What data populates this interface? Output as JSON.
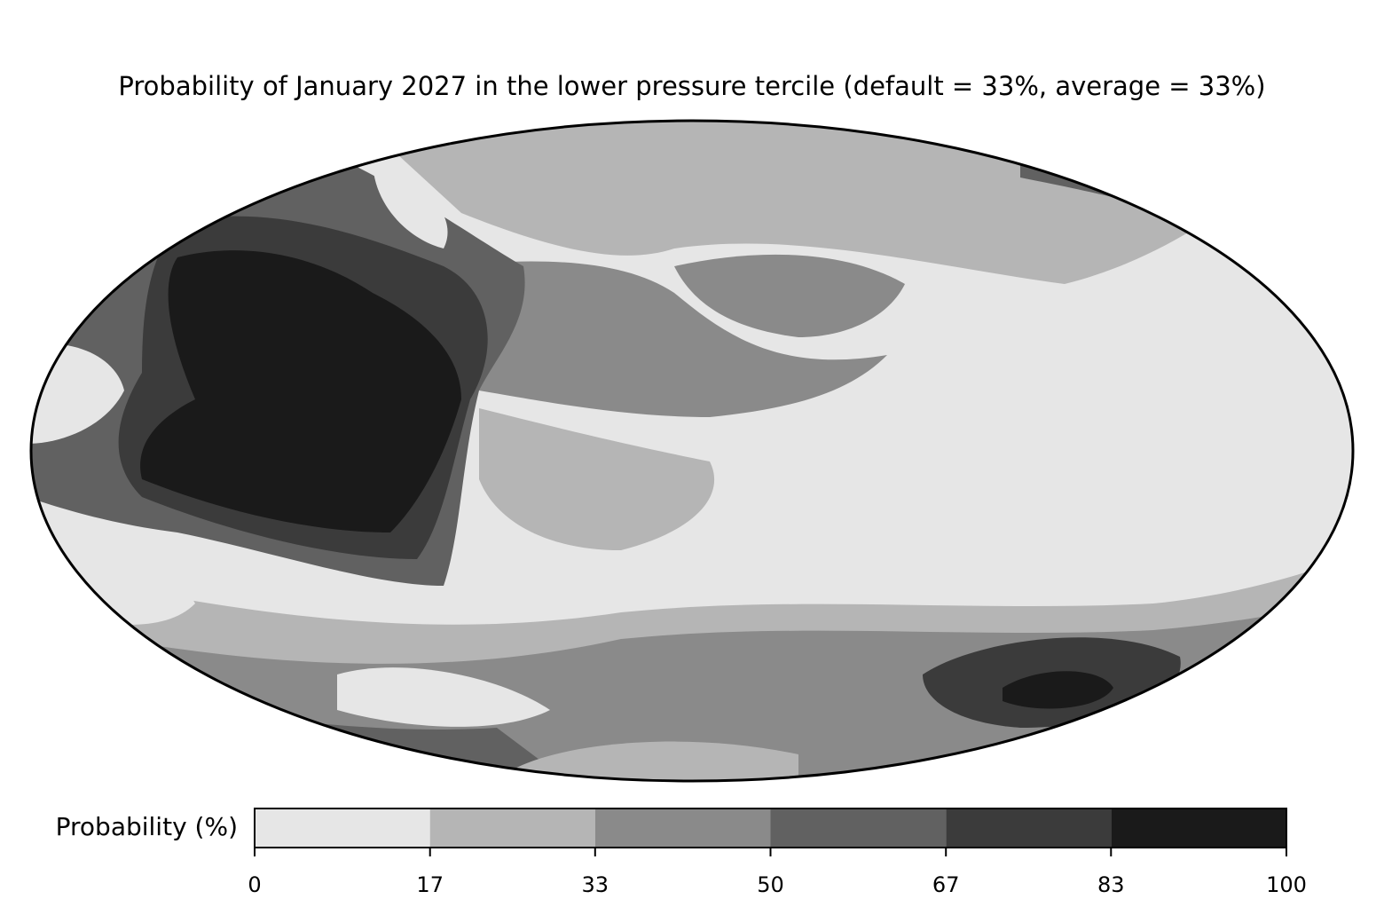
{
  "title": "Probability of January 2027 in the lower pressure tercile (default = 33%, average = 33%)",
  "colorbar": {
    "label": "Probability (%)",
    "lim": [
      0,
      100
    ],
    "ticks": [
      0,
      17,
      33,
      50,
      67,
      83,
      100
    ],
    "colors": [
      "#e6e6e6",
      "#b5b5b5",
      "#8a8a8a",
      "#616161",
      "#3b3b3b",
      "#1a1a1a"
    ]
  }
}
